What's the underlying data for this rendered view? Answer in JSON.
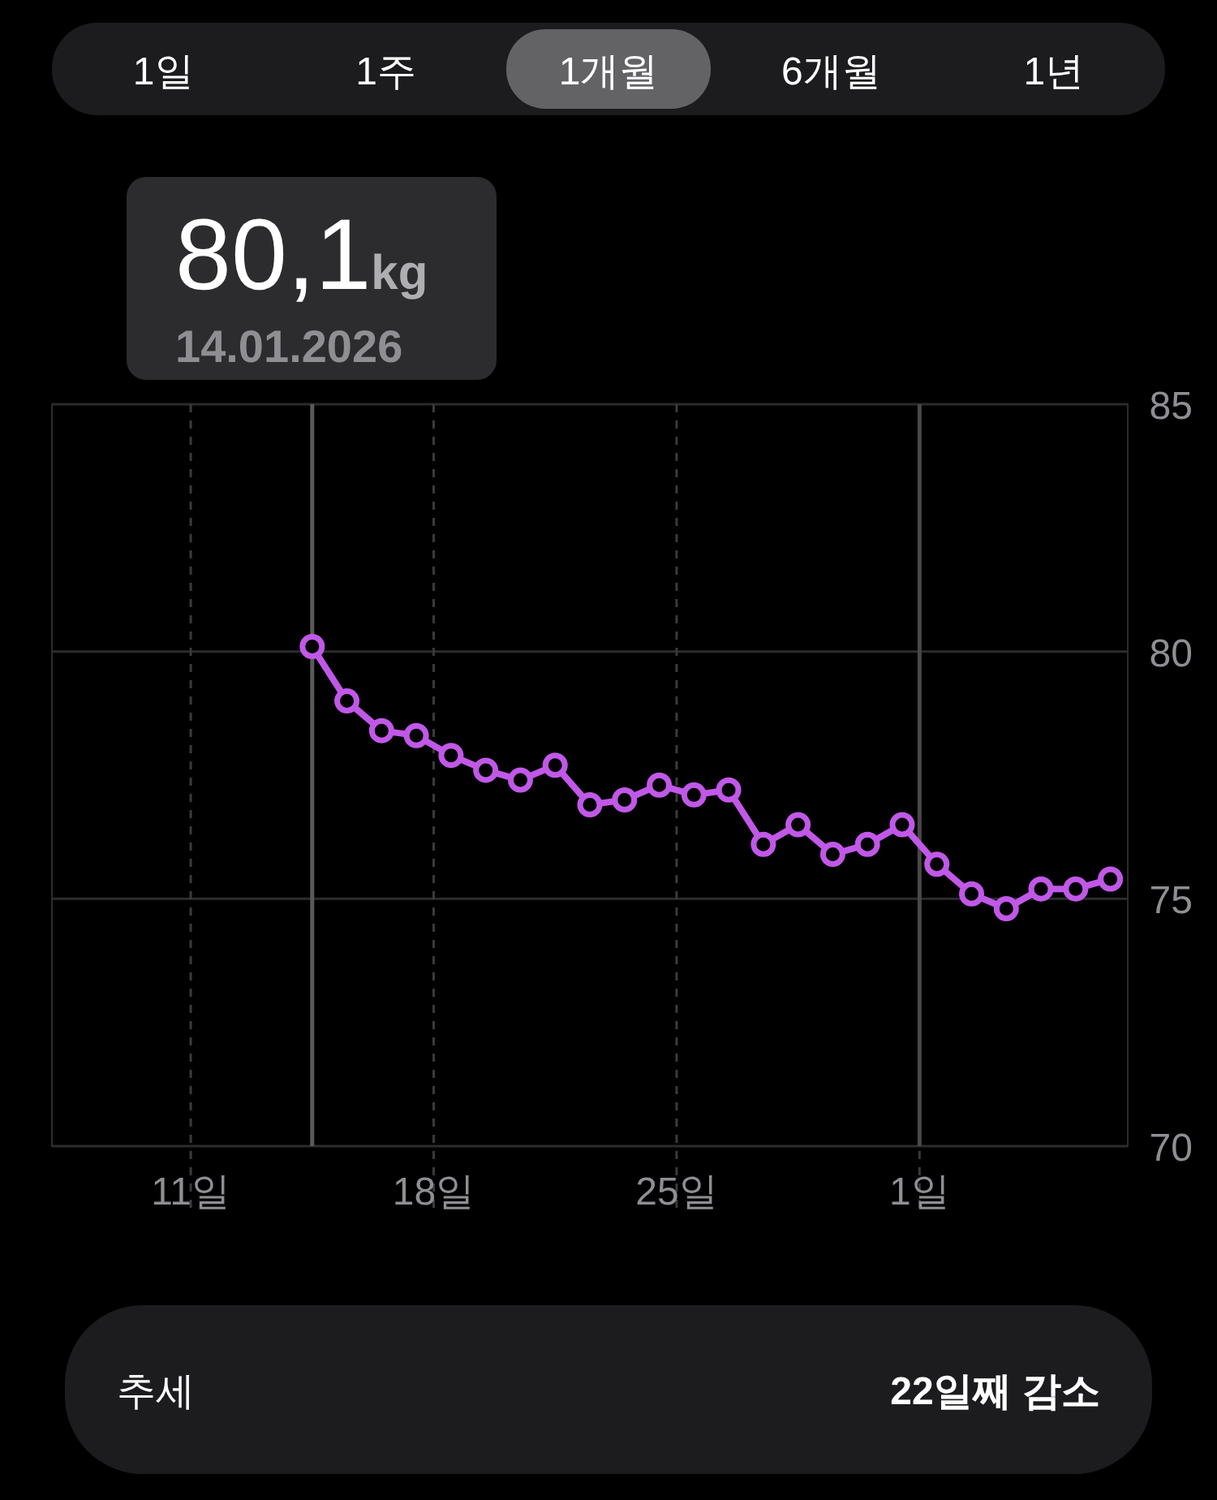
{
  "chart_data": {
    "type": "line",
    "x": [
      "2026-01-14T12:00",
      "2026-01-15T12:00",
      "2026-01-16T12:00",
      "2026-01-17T12:00",
      "2026-01-18T12:00",
      "2026-01-19T12:00",
      "2026-01-20T12:00",
      "2026-01-21T12:00",
      "2026-01-22T12:00",
      "2026-01-23T12:00",
      "2026-01-24T12:00",
      "2026-01-25T12:00",
      "2026-01-26T12:00",
      "2026-01-27T12:00",
      "2026-01-28T12:00",
      "2026-01-29T12:00",
      "2026-01-30T12:00",
      "2026-01-31T12:00",
      "2026-02-01T12:00",
      "2026-02-02T12:00",
      "2026-02-03T12:00",
      "2026-02-04T12:00",
      "2026-02-05T12:00",
      "2026-02-06T12:00"
    ],
    "series": [
      {
        "color": "#c158e8",
        "values": [
          80.1,
          79.0,
          78.4,
          78.3,
          77.9,
          77.6,
          77.4,
          77.7,
          76.9,
          77.0,
          77.3,
          77.1,
          77.2,
          76.1,
          76.5,
          75.9,
          76.1,
          76.5,
          75.7,
          75.1,
          74.8,
          75.2,
          75.2,
          75.4
        ]
      }
    ],
    "xlim": [
      "2026-01-07",
      "2026-02-07"
    ],
    "xticks": [
      {
        "value": "2026-01-11",
        "label": "11일"
      },
      {
        "value": "2026-01-18",
        "label": "18일"
      },
      {
        "value": "2026-01-25",
        "label": "25일"
      },
      {
        "value": "2026-02-01",
        "label": "1일"
      }
    ],
    "ylim": [
      70,
      85
    ],
    "yticks": [
      70,
      75,
      80,
      85
    ],
    "grid": true,
    "marker": "circle",
    "line_style": "solid",
    "ref_lines": [
      {
        "axis": "x",
        "value": "2026-01-14T12:00",
        "label": null,
        "color": "#5a5a5c"
      },
      {
        "axis": "x",
        "value": "2026-02-01",
        "label": null,
        "color": "#48484a"
      }
    ],
    "annotations": [
      "1일",
      "1주",
      "1개월",
      "6개월",
      "1년",
      "80,1kg",
      "14.01.2026",
      "추세",
      "22일째 감소"
    ]
  }
}
